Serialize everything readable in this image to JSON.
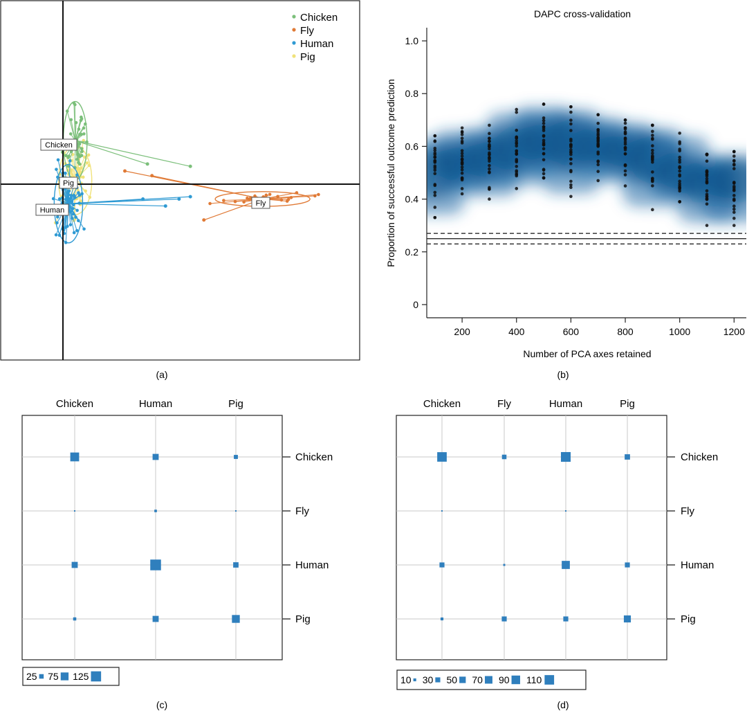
{
  "colors": {
    "chicken": "#7bbf7a",
    "fly": "#e07a36",
    "human": "#2f9ad3",
    "pig": "#f0e27a",
    "square": "#2f7fbd",
    "heat": "#1f6aa6",
    "grid": "#c8c8c8"
  },
  "chart_data": [
    {
      "panel": "(a)",
      "type": "scatter",
      "title": "",
      "legend": {
        "position": "top-right",
        "entries": [
          "Chicken",
          "Fly",
          "Human",
          "Pig"
        ],
        "colors": [
          "#7bbf7a",
          "#e07a36",
          "#2f9ad3",
          "#f0e27a"
        ]
      },
      "groups": [
        {
          "name": "Chicken",
          "centroid": [
            0.6,
            1.7
          ],
          "spread": [
            0.25,
            0.8
          ]
        },
        {
          "name": "Pig",
          "centroid": [
            0.6,
            0.0
          ],
          "spread": [
            0.35,
            0.7
          ]
        },
        {
          "name": "Human",
          "centroid": [
            0.3,
            -1.0
          ],
          "spread": [
            0.3,
            0.8
          ]
        },
        {
          "name": "Fly",
          "centroid": [
            8.9,
            -0.8
          ],
          "spread": [
            1.0,
            0.15
          ]
        }
      ],
      "outliers": [
        {
          "group": "Chicken",
          "points": [
            [
              3.8,
              0.7
            ],
            [
              5.7,
              0.6
            ]
          ]
        },
        {
          "group": "Fly",
          "points": [
            [
              6.3,
              -1.7
            ],
            [
              2.8,
              0.4
            ],
            [
              4.0,
              0.2
            ]
          ]
        },
        {
          "group": "Human",
          "points": [
            [
              5.2,
              -0.8
            ],
            [
              5.7,
              -0.7
            ],
            [
              4.6,
              -1.1
            ],
            [
              3.6,
              -0.8
            ]
          ]
        }
      ],
      "xlim": [
        -2.7,
        13.2
      ],
      "ylim": [
        -7.7,
        7.7
      ],
      "axes_cross": [
        0,
        0
      ]
    },
    {
      "panel": "(b)",
      "type": "scatter",
      "title": "DAPC cross-validation",
      "xlabel": "Number of PCA axes retained",
      "ylabel": "Proportion of successful outcome prediction",
      "xlim": [
        70,
        1245
      ],
      "ylim": [
        -0.05,
        1.05
      ],
      "xticks": [
        200,
        400,
        600,
        800,
        1000,
        1200
      ],
      "yticks": [
        0,
        0.2,
        0.4,
        0.6,
        0.8,
        1.0
      ],
      "ytick_labels": [
        "0",
        "0.2",
        "0.4",
        "0.6",
        "0.8",
        "1.0"
      ],
      "x_positions": [
        100,
        200,
        300,
        400,
        500,
        600,
        700,
        800,
        900,
        1000,
        1100,
        1200
      ],
      "y_min": [
        0.33,
        0.42,
        0.4,
        0.44,
        0.48,
        0.41,
        0.47,
        0.45,
        0.36,
        0.39,
        0.3,
        0.3
      ],
      "y_max": [
        0.64,
        0.67,
        0.68,
        0.74,
        0.76,
        0.75,
        0.72,
        0.7,
        0.68,
        0.65,
        0.57,
        0.58
      ],
      "y_mean": [
        0.5,
        0.54,
        0.55,
        0.59,
        0.62,
        0.61,
        0.6,
        0.58,
        0.55,
        0.5,
        0.46,
        0.47
      ],
      "reference_lines": {
        "solid": 0.25,
        "dashed": [
          0.23,
          0.27
        ]
      }
    },
    {
      "panel": "(c)",
      "type": "table",
      "columns": [
        "Chicken",
        "Human",
        "Pig"
      ],
      "rows": [
        "Chicken",
        "Fly",
        "Human",
        "Pig"
      ],
      "values": [
        [
          95,
          45,
          20
        ],
        [
          2,
          8,
          1
        ],
        [
          45,
          140,
          35
        ],
        [
          12,
          45,
          75
        ]
      ],
      "legend": {
        "position": "bottom-left",
        "values": [
          25,
          75,
          125
        ],
        "labels": [
          "25",
          "75",
          "125"
        ]
      }
    },
    {
      "panel": "(d)",
      "type": "table",
      "columns": [
        "Chicken",
        "Fly",
        "Human",
        "Pig"
      ],
      "rows": [
        "Chicken",
        "Fly",
        "Human",
        "Pig"
      ],
      "values": [
        [
          110,
          25,
          115,
          35
        ],
        [
          1,
          0,
          1,
          0
        ],
        [
          30,
          5,
          80,
          30
        ],
        [
          10,
          30,
          30,
          60
        ]
      ],
      "legend": {
        "position": "bottom-left",
        "values": [
          10,
          30,
          50,
          70,
          90,
          110
        ],
        "labels": [
          "10",
          "30",
          "50",
          "70",
          "90",
          "110"
        ]
      }
    }
  ],
  "labels": {
    "cluster_chicken": "Chicken",
    "cluster_pig": "Pig",
    "cluster_human": "Human",
    "cluster_fly": "Fly",
    "panel_a": "(a)",
    "panel_b": "(b)",
    "panel_c": "(c)",
    "panel_d": "(d)"
  }
}
